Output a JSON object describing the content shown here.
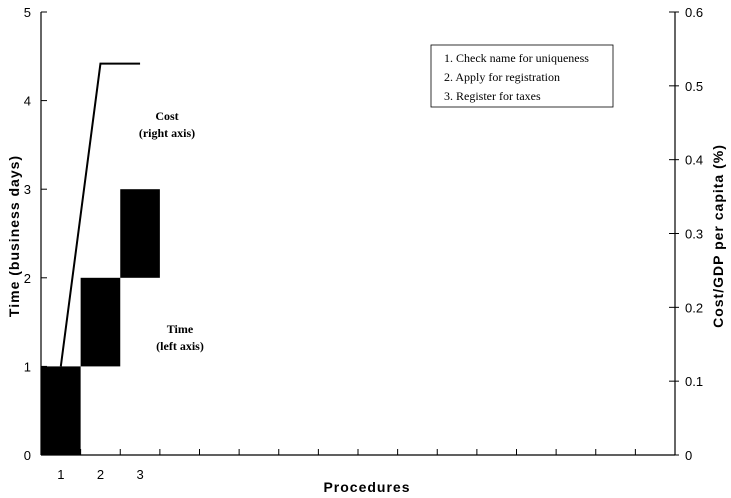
{
  "chart_data": {
    "type": "bar",
    "xlabel": "Procedures",
    "ylabel_left": "Time (business days)",
    "ylabel_right": "Cost/GDP per capita (%)",
    "x_tick_labels": [
      "1",
      "2",
      "3"
    ],
    "x_tick_count": 16,
    "ylim_left": [
      0,
      5
    ],
    "yticks_left": [
      0,
      1,
      2,
      3,
      4,
      5
    ],
    "ylim_right": [
      0,
      0.6
    ],
    "yticks_right": [
      "0",
      "0.1",
      "0.2",
      "0.3",
      "0.4",
      "0.5",
      "0.6"
    ],
    "time_blocks": [
      {
        "procedure": 1,
        "start": 0,
        "end": 1
      },
      {
        "procedure": 2,
        "start": 1,
        "end": 2
      },
      {
        "procedure": 3,
        "start": 2,
        "end": 3
      }
    ],
    "cost_line": {
      "x": [
        0.5,
        1.5,
        2.5
      ],
      "y": [
        0.12,
        0.53,
        0.53
      ]
    },
    "annotations": {
      "cost": [
        "Cost",
        "(right axis)"
      ],
      "time": [
        "Time",
        "(left axis)"
      ]
    },
    "legend_items": [
      "1.   Check name for uniqueness",
      "2.   Apply for registration",
      "3.   Register for taxes"
    ],
    "grid": false,
    "legend_position": "top-right",
    "colors": {
      "bars": "#000000",
      "line": "#000000"
    }
  }
}
